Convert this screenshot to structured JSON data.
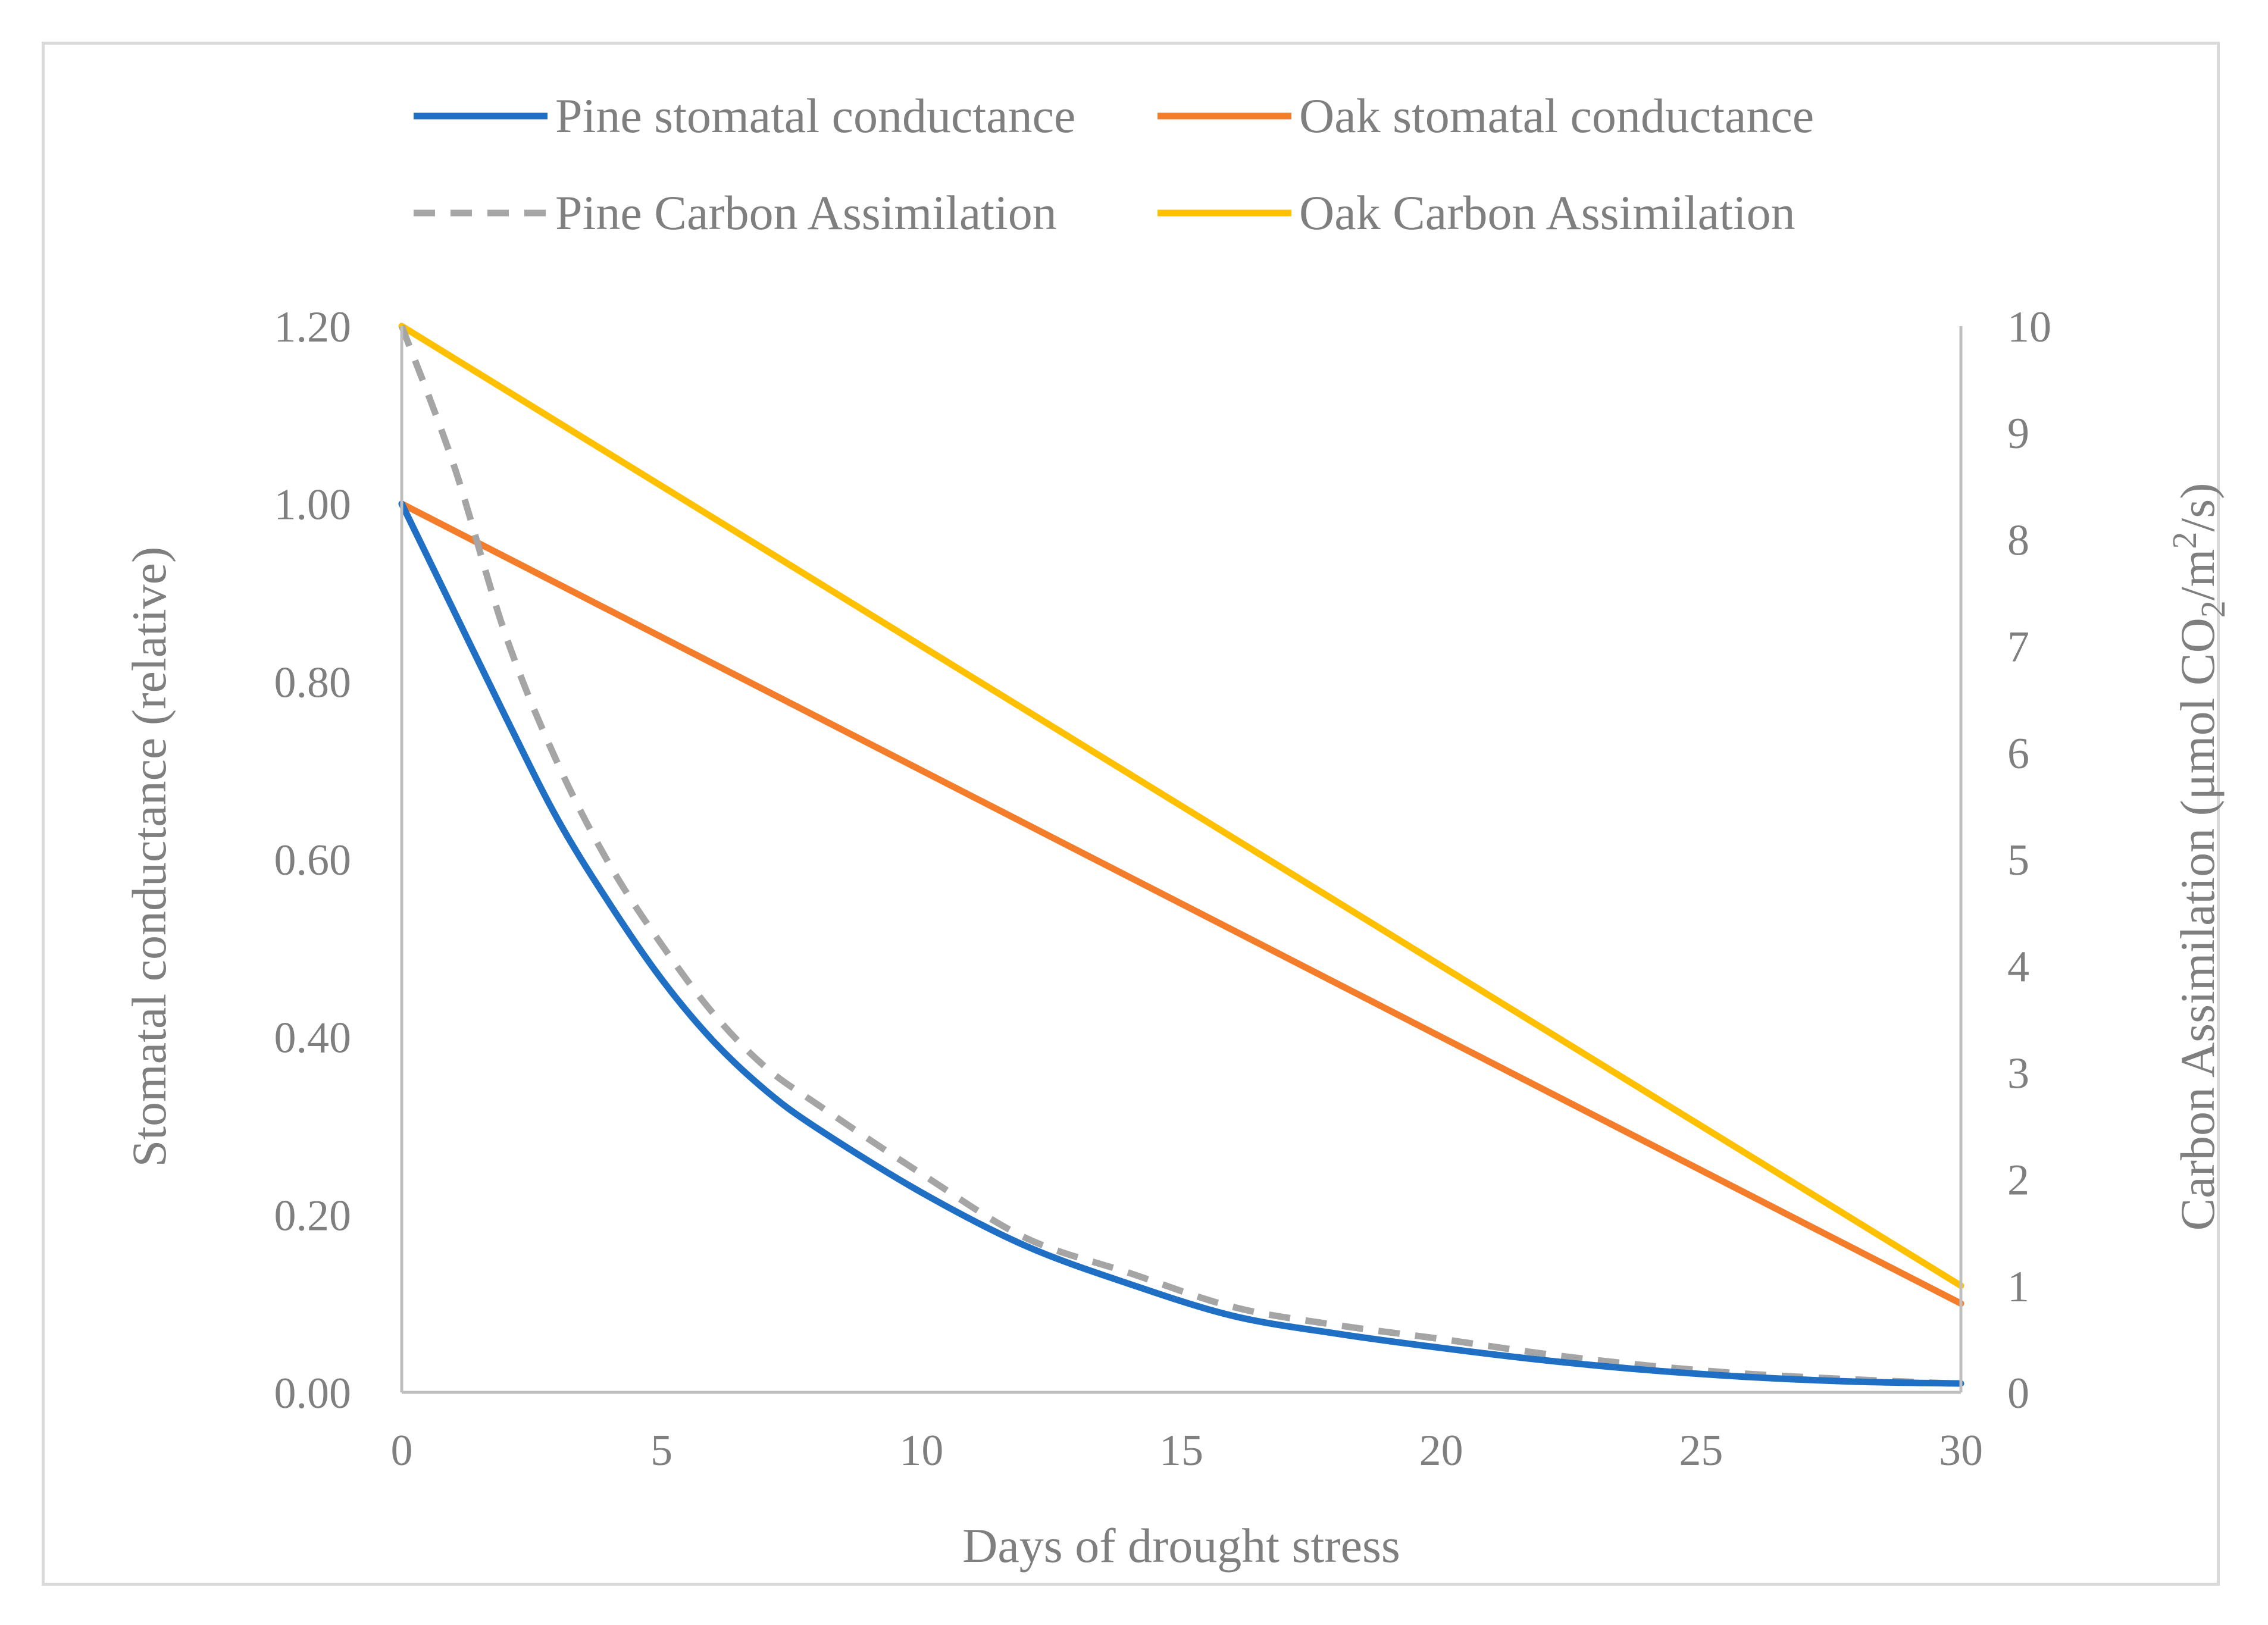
{
  "chart_data": {
    "type": "line",
    "title": "",
    "xlabel": "Days of drought stress",
    "ylabel": "Stomatal conductance (relative)",
    "y2label_parts": {
      "prefix": "Carbon Assimilation (μmol CO",
      "sub": "2",
      "mid": "/m",
      "sup": "2",
      "suffix": "/s)"
    },
    "xlim": [
      0,
      30
    ],
    "ylim": [
      0,
      1.2
    ],
    "y2lim": [
      0,
      10
    ],
    "x_ticks": [
      "0",
      "5",
      "10",
      "15",
      "20",
      "25",
      "30"
    ],
    "y_ticks": [
      "0.00",
      "0.20",
      "0.40",
      "0.60",
      "0.80",
      "1.00",
      "1.20"
    ],
    "y2_ticks": [
      "0",
      "1",
      "2",
      "3",
      "4",
      "5",
      "6",
      "7",
      "8",
      "9",
      "10"
    ],
    "legend_position": "top",
    "series": [
      {
        "name": "Pine stomatal conductance",
        "axis": "left",
        "color": "#1f6fc5",
        "dash": "solid",
        "x": [
          0,
          1,
          2,
          3,
          4,
          5,
          6,
          7,
          8,
          10,
          12,
          14,
          16,
          18,
          20,
          22,
          24,
          26,
          28,
          30
        ],
        "y": [
          1.0,
          0.88,
          0.76,
          0.645,
          0.55,
          0.465,
          0.395,
          0.34,
          0.297,
          0.225,
          0.165,
          0.122,
          0.086,
          0.066,
          0.05,
          0.036,
          0.025,
          0.017,
          0.012,
          0.01
        ]
      },
      {
        "name": "Oak stomatal conductance",
        "axis": "left",
        "color": "#f47d2b",
        "dash": "solid",
        "x": [
          0,
          30
        ],
        "y": [
          1.0,
          0.1
        ]
      },
      {
        "name": "Pine Carbon Assimilation",
        "axis": "right",
        "color": "#a5a5a5",
        "dash": "dashed",
        "x": [
          0,
          1,
          2,
          3,
          4,
          5,
          6,
          7,
          8,
          10,
          12,
          14,
          16,
          18,
          20,
          22,
          24,
          26,
          28,
          30
        ],
        "y": [
          10.0,
          8.7,
          7.1,
          5.9,
          4.95,
          4.2,
          3.55,
          3.05,
          2.7,
          2.05,
          1.45,
          1.12,
          0.8,
          0.63,
          0.5,
          0.36,
          0.25,
          0.17,
          0.12,
          0.08
        ]
      },
      {
        "name": "Oak Carbon Assimilation",
        "axis": "right",
        "color": "#ffc000",
        "dash": "solid",
        "x": [
          0,
          30
        ],
        "y": [
          10.0,
          1.0
        ]
      }
    ]
  },
  "colors": {
    "axis": "#bfbfbf",
    "text": "#7f7f7f"
  }
}
